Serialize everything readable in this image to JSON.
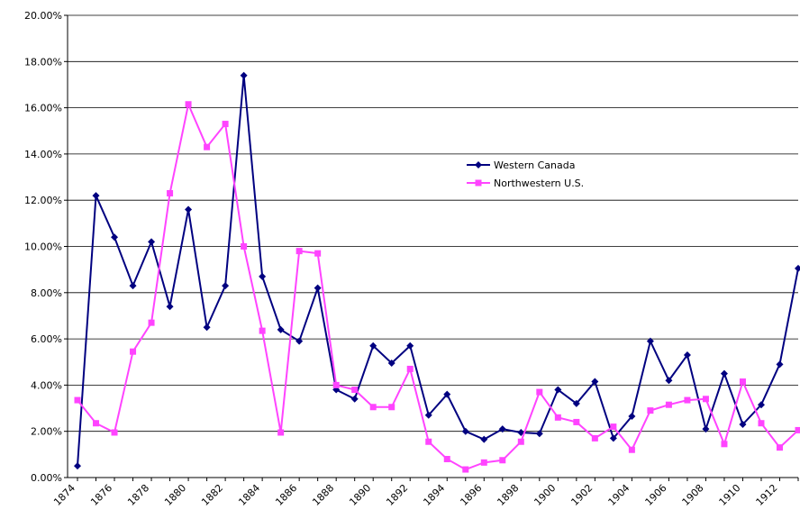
{
  "chart_data": {
    "type": "line",
    "categories": [
      "1874",
      null,
      "1876",
      null,
      "1878",
      null,
      "1880",
      null,
      "1882",
      null,
      "1884",
      null,
      "1886",
      null,
      "1888",
      null,
      "1890",
      null,
      "1892",
      null,
      "1894",
      null,
      "1896",
      null,
      "1898",
      null,
      "1900",
      null,
      "1902",
      null,
      "1904",
      null,
      "1906",
      null,
      "1908",
      null,
      "1910",
      null,
      "1912",
      null
    ],
    "series": [
      {
        "name": "Western Canada",
        "color": "#000080",
        "marker": "diamond",
        "values": [
          0.5,
          12.2,
          10.4,
          8.3,
          10.2,
          7.4,
          11.6,
          6.5,
          8.3,
          17.4,
          8.7,
          6.4,
          5.9,
          8.2,
          3.8,
          3.4,
          5.7,
          4.95,
          5.7,
          2.7,
          3.6,
          2.0,
          1.65,
          2.1,
          1.95,
          1.9,
          3.8,
          3.2,
          4.15,
          1.7,
          2.65,
          5.9,
          4.2,
          5.3,
          2.1,
          4.5,
          2.3,
          3.15,
          4.9,
          9.05
        ]
      },
      {
        "name": "Northwestern U.S.",
        "color": "#ff44ff",
        "marker": "square",
        "values": [
          3.35,
          2.35,
          1.95,
          5.45,
          6.7,
          12.3,
          16.15,
          14.3,
          15.3,
          10.0,
          6.35,
          1.95,
          9.8,
          9.7,
          4.0,
          3.8,
          3.05,
          3.05,
          4.7,
          1.55,
          0.8,
          0.35,
          0.65,
          0.75,
          1.55,
          3.7,
          2.6,
          2.4,
          1.7,
          2.2,
          1.2,
          2.9,
          3.15,
          3.35,
          3.4,
          1.45,
          4.15,
          2.35,
          1.3,
          2.05
        ]
      }
    ],
    "ylim": [
      0,
      20
    ],
    "yticks": [
      {
        "value": 0,
        "label": "0.00%"
      },
      {
        "value": 2,
        "label": "2.00%"
      },
      {
        "value": 4,
        "label": "4.00%"
      },
      {
        "value": 6,
        "label": "6.00%"
      },
      {
        "value": 8,
        "label": "8.00%"
      },
      {
        "value": 10,
        "label": "10.00%"
      },
      {
        "value": 12,
        "label": "12.00%"
      },
      {
        "value": 14,
        "label": "14.00%"
      },
      {
        "value": 16,
        "label": "16.00%"
      },
      {
        "value": 18,
        "label": "18.00%"
      },
      {
        "value": 20,
        "label": "20.00%"
      }
    ],
    "grid": true,
    "legend": "center"
  }
}
